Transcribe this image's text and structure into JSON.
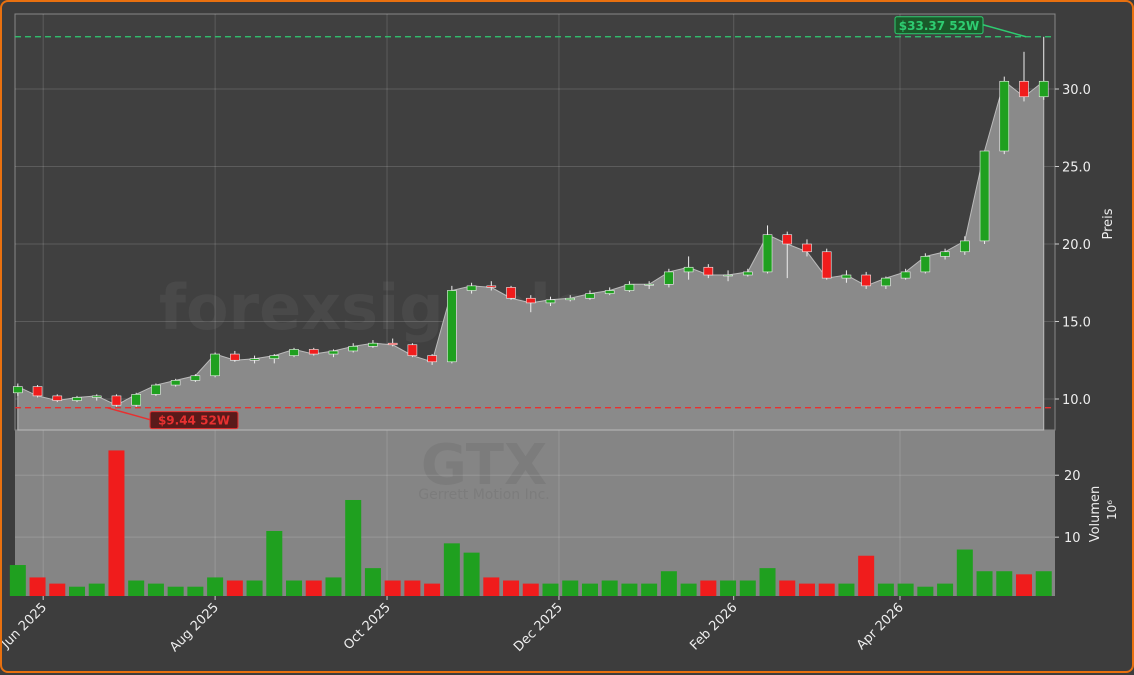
{
  "chart_data": {
    "type": "candlestick",
    "watermark": "forexsignale.trade",
    "symbol": "GTX",
    "company": "Gerrett Motion Inc.",
    "ylabel": "Preis",
    "volume_label": "Volumen",
    "volume_unit": "10⁶",
    "x": [
      "2025-05-23",
      "2025-05-30",
      "2025-06-06",
      "2025-06-13",
      "2025-06-20",
      "2025-06-27",
      "2025-07-04",
      "2025-07-11",
      "2025-07-18",
      "2025-07-25",
      "2025-08-01",
      "2025-08-08",
      "2025-08-15",
      "2025-08-22",
      "2025-08-29",
      "2025-09-05",
      "2025-09-12",
      "2025-09-19",
      "2025-09-26",
      "2025-10-03",
      "2025-10-10",
      "2025-10-17",
      "2025-10-24",
      "2025-10-31",
      "2025-11-07",
      "2025-11-14",
      "2025-11-21",
      "2025-11-28",
      "2025-12-05",
      "2025-12-12",
      "2025-12-19",
      "2025-12-26",
      "2026-01-02",
      "2026-01-09",
      "2026-01-16",
      "2026-01-23",
      "2026-01-30",
      "2026-02-06",
      "2026-02-13",
      "2026-02-20",
      "2026-02-27",
      "2026-03-06",
      "2026-03-13",
      "2026-03-20",
      "2026-03-27",
      "2026-04-03",
      "2026-04-10",
      "2026-04-17",
      "2026-04-24",
      "2026-05-01",
      "2026-05-08",
      "2026-05-15",
      "2026-05-22"
    ],
    "open": [
      10.4,
      10.8,
      10.2,
      9.9,
      10.1,
      10.2,
      9.6,
      10.3,
      10.9,
      11.2,
      11.5,
      12.9,
      12.5,
      12.6,
      12.8,
      13.2,
      12.9,
      13.1,
      13.4,
      13.6,
      13.5,
      12.8,
      12.4,
      17.0,
      17.3,
      17.2,
      16.5,
      16.2,
      16.4,
      16.5,
      16.8,
      17.0,
      17.4,
      17.4,
      18.2,
      18.5,
      18.0,
      18.0,
      18.2,
      20.6,
      20.0,
      19.5,
      17.8,
      18.0,
      17.3,
      17.8,
      18.2,
      19.2,
      19.5,
      20.2,
      26.0,
      30.5,
      29.5
    ],
    "high": [
      11.0,
      10.9,
      10.3,
      10.2,
      10.3,
      10.3,
      10.4,
      11.0,
      11.3,
      11.6,
      13.0,
      13.1,
      12.8,
      12.9,
      13.3,
      13.3,
      13.2,
      13.6,
      13.8,
      13.9,
      13.6,
      12.9,
      17.3,
      17.5,
      17.6,
      17.3,
      16.7,
      16.6,
      16.7,
      17.0,
      17.2,
      17.6,
      17.6,
      18.4,
      19.2,
      18.7,
      18.3,
      18.4,
      21.2,
      20.8,
      20.3,
      19.7,
      18.3,
      18.2,
      17.9,
      18.4,
      19.4,
      19.7,
      20.5,
      25.8,
      30.8,
      32.4,
      33.37
    ],
    "low": [
      10.2,
      10.1,
      9.8,
      9.8,
      9.9,
      9.5,
      9.44,
      10.2,
      10.8,
      11.1,
      11.4,
      12.4,
      12.3,
      12.3,
      12.7,
      12.8,
      12.7,
      13.0,
      13.3,
      13.4,
      12.7,
      12.2,
      12.3,
      16.8,
      17.0,
      16.4,
      15.6,
      16.0,
      16.3,
      16.4,
      16.7,
      16.9,
      17.1,
      17.2,
      17.7,
      17.8,
      17.6,
      17.9,
      18.1,
      17.8,
      19.2,
      17.7,
      17.5,
      17.1,
      17.1,
      17.7,
      18.1,
      19.0,
      19.3,
      20.0,
      25.8,
      29.2,
      29.3
    ],
    "close": [
      10.8,
      10.2,
      9.9,
      10.1,
      10.2,
      9.6,
      10.3,
      10.9,
      11.2,
      11.5,
      12.9,
      12.5,
      12.6,
      12.8,
      13.2,
      12.9,
      13.1,
      13.4,
      13.6,
      13.5,
      12.8,
      12.4,
      17.0,
      17.3,
      17.2,
      16.5,
      16.2,
      16.4,
      16.5,
      16.8,
      17.0,
      17.4,
      17.4,
      18.2,
      18.5,
      18.0,
      18.0,
      18.2,
      20.6,
      20.0,
      19.5,
      17.8,
      18.0,
      17.3,
      17.8,
      18.2,
      19.2,
      19.5,
      20.2,
      26.0,
      30.5,
      29.5,
      30.5
    ],
    "volume": [
      5.5,
      3.5,
      2.5,
      2.0,
      2.5,
      24.0,
      3.0,
      2.5,
      2.0,
      2.0,
      3.5,
      3.0,
      3.0,
      11.0,
      3.0,
      3.0,
      3.5,
      16.0,
      5.0,
      3.0,
      3.0,
      2.5,
      9.0,
      7.5,
      3.5,
      3.0,
      2.5,
      2.5,
      3.0,
      2.5,
      3.0,
      2.5,
      2.5,
      4.5,
      2.5,
      3.0,
      3.0,
      3.0,
      5.0,
      3.0,
      2.5,
      2.5,
      2.5,
      7.0,
      2.5,
      2.5,
      2.0,
      2.5,
      8.0,
      4.5,
      4.5,
      4.0,
      4.5
    ],
    "xlim": [
      "2025-05-22",
      "2026-05-26"
    ],
    "xticks": [
      {
        "value": "2025-06-01",
        "label": "Jun 2025"
      },
      {
        "value": "2025-08-01",
        "label": "Aug 2025"
      },
      {
        "value": "2025-10-01",
        "label": "Oct 2025"
      },
      {
        "value": "2025-12-01",
        "label": "Dec 2025"
      },
      {
        "value": "2026-02-01",
        "label": "Feb 2026"
      },
      {
        "value": "2026-04-01",
        "label": "Apr 2026"
      }
    ],
    "ylim": [
      8.0,
      34.84
    ],
    "yticks": [
      {
        "value": 10,
        "label": "10.0"
      },
      {
        "value": 15,
        "label": "15.0"
      },
      {
        "value": 20,
        "label": "20.0"
      },
      {
        "value": 25,
        "label": "25.0"
      },
      {
        "value": 30,
        "label": "30.0"
      }
    ],
    "volume_ylim": [
      0.5,
      27.3
    ],
    "volume_yticks": [
      10,
      20
    ],
    "annotations": [
      {
        "value": 33.37,
        "label": "$33.37 52W",
        "color": "#2ecc71"
      },
      {
        "value": 9.44,
        "label": "$9.44 52W",
        "color": "#e83030"
      }
    ],
    "up_color": "#1fa01f",
    "down_color": "#f01c1c",
    "grid": true
  }
}
